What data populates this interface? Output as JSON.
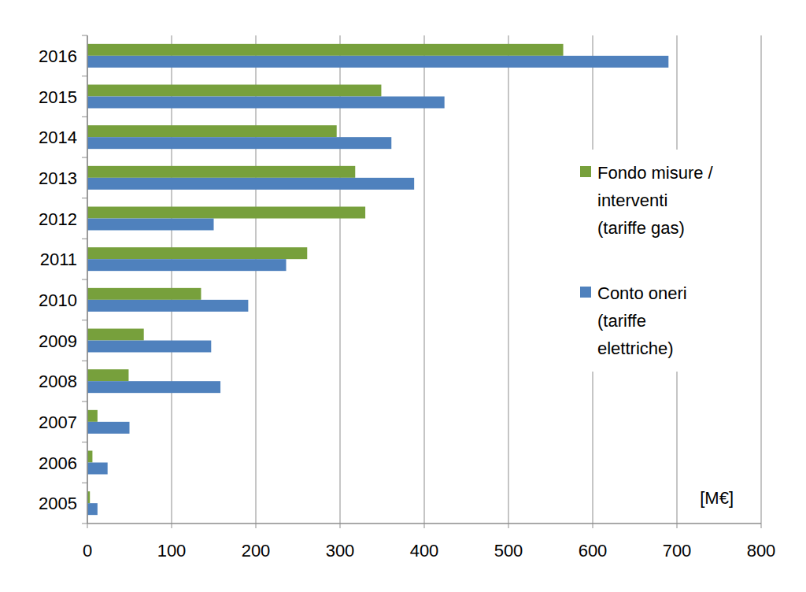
{
  "chart_data": {
    "type": "bar",
    "orientation": "horizontal",
    "categories": [
      "2005",
      "2006",
      "2007",
      "2008",
      "2009",
      "2010",
      "2011",
      "2012",
      "2013",
      "2014",
      "2015",
      "2016"
    ],
    "series": [
      {
        "name": "Fondo misure / interventi (tariffe gas)",
        "color": "#77a03c",
        "values": [
          3,
          6,
          12,
          49,
          67,
          135,
          261,
          330,
          318,
          296,
          349,
          565
        ]
      },
      {
        "name": "Conto oneri (tariffe elettriche)",
        "color": "#4f81bd",
        "values": [
          12,
          24,
          50,
          158,
          147,
          191,
          236,
          150,
          388,
          361,
          424,
          690
        ]
      }
    ],
    "xlabel": "[M€]",
    "xlim": [
      0,
      800
    ],
    "xticks": [
      0,
      100,
      200,
      300,
      400,
      500,
      600,
      700,
      800
    ],
    "grid": true,
    "legend": "right"
  }
}
